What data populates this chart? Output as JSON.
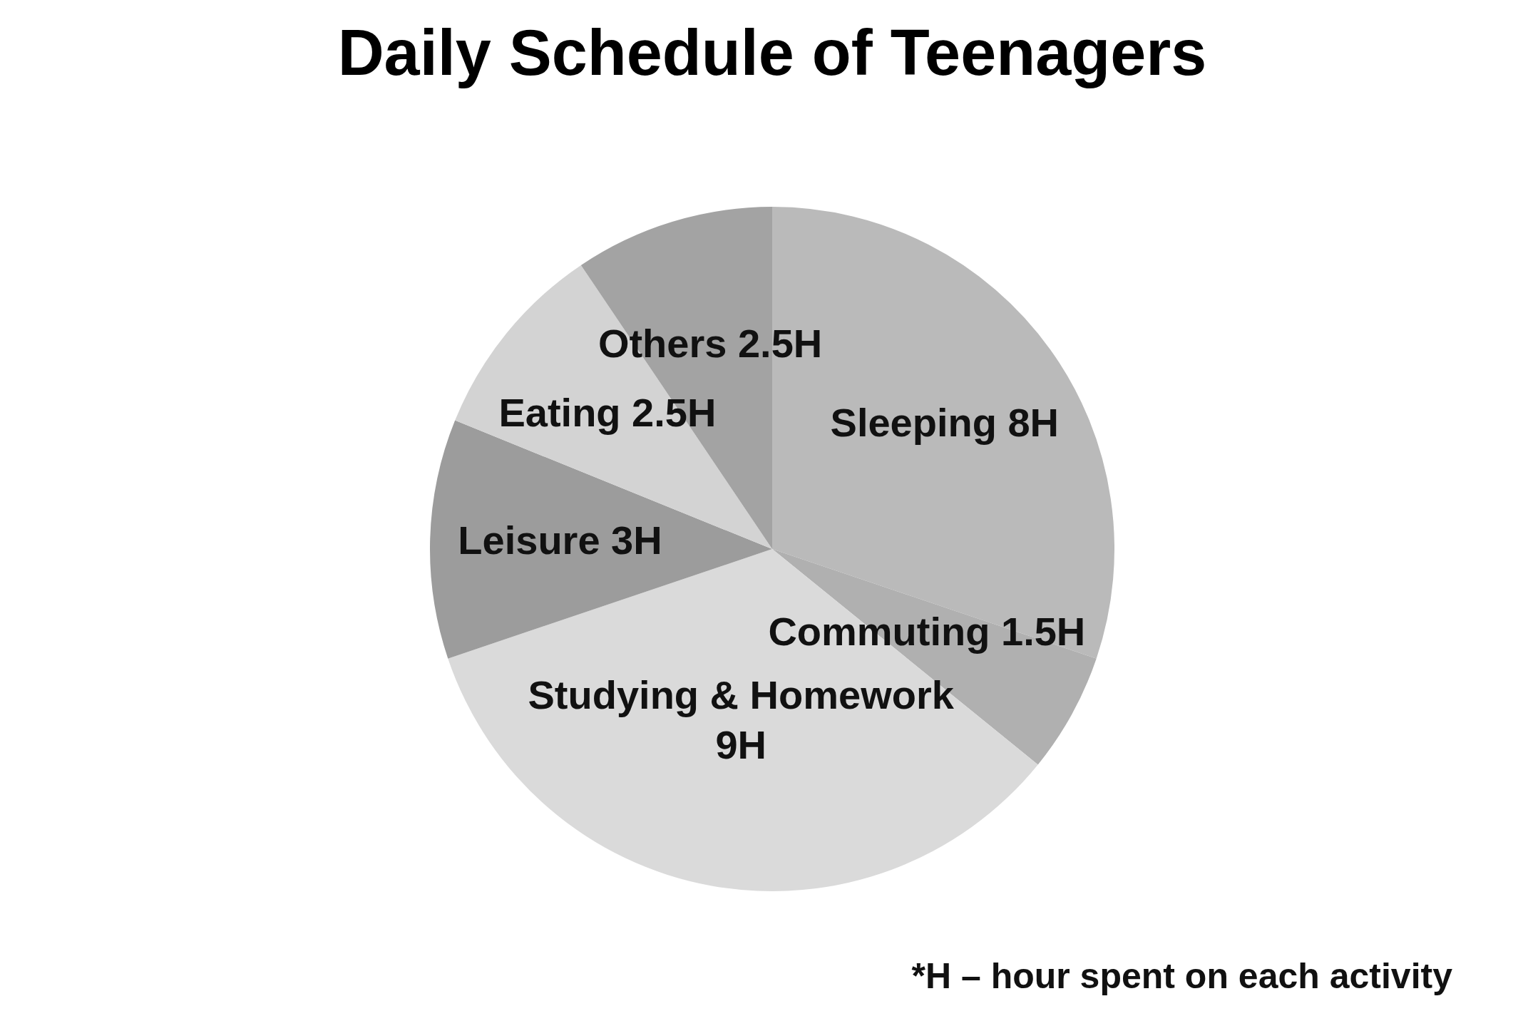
{
  "chart_data": {
    "type": "pie",
    "title": "Daily Schedule of Teenagers",
    "categories": [
      "Sleeping",
      "Commuting",
      "Studying & Homework",
      "Leisure",
      "Eating",
      "Others"
    ],
    "values": [
      8,
      1.5,
      9,
      3,
      2.5,
      2.5
    ],
    "value_labels": [
      "8H",
      "1.5H",
      "9H",
      "3H",
      "2.5H",
      "2.5H"
    ],
    "colors": [
      "#bababa",
      "#b0b0b0",
      "#dadada",
      "#9c9c9c",
      "#d3d3d3",
      "#a3a3a3"
    ],
    "annotations": [
      "*H – hour spent on each activity"
    ]
  }
}
